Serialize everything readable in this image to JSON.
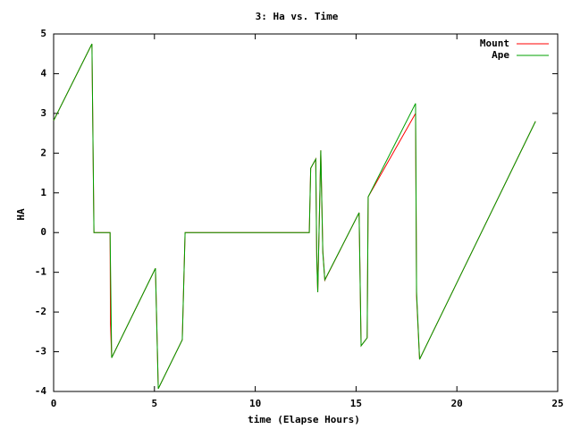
{
  "chart_data": {
    "type": "line",
    "title": "3: Ha vs. Time",
    "x_label": "time (Elapse Hours)",
    "y_label": "HA",
    "x": [
      0,
      1.9,
      2.0,
      2.8,
      2.82,
      2.88,
      5.05,
      5.19,
      6.38,
      6.52,
      12.68,
      12.75,
      13.0,
      13.05,
      13.1,
      13.25,
      13.35,
      13.45,
      15.15,
      15.25,
      15.55,
      15.6,
      17.95,
      18.0,
      18.15,
      23.9
    ],
    "series": [
      {
        "name": "Mount",
        "color": "#ff0000",
        "values": [
          2.82,
          4.75,
          0,
          0,
          -2.3,
          -3.15,
          -0.9,
          -3.93,
          -2.7,
          0,
          0,
          1.62,
          1.85,
          -0.6,
          -1.5,
          2.07,
          -0.45,
          -1.2,
          0.5,
          -2.85,
          -2.65,
          0.9,
          3.0,
          -1.6,
          -3.19,
          2.8
        ]
      },
      {
        "name": "Ape",
        "color": "#00a000",
        "values": [
          2.82,
          4.75,
          0,
          0,
          -0.8,
          -3.15,
          -0.9,
          -3.93,
          -2.7,
          0,
          0,
          1.62,
          1.85,
          -0.67,
          -1.5,
          2.07,
          -0.5,
          -1.19,
          0.5,
          -2.85,
          -2.65,
          0.9,
          3.25,
          -1.5,
          -3.19,
          2.8
        ]
      }
    ],
    "xlim": [
      0,
      25
    ],
    "xticks": [
      0,
      5,
      10,
      15,
      20,
      25
    ],
    "ylim": [
      -4,
      5
    ],
    "yticks": [
      -4,
      -3,
      -2,
      -1,
      0,
      1,
      2,
      3,
      4,
      5
    ],
    "grid": false,
    "legend": "top-right"
  }
}
